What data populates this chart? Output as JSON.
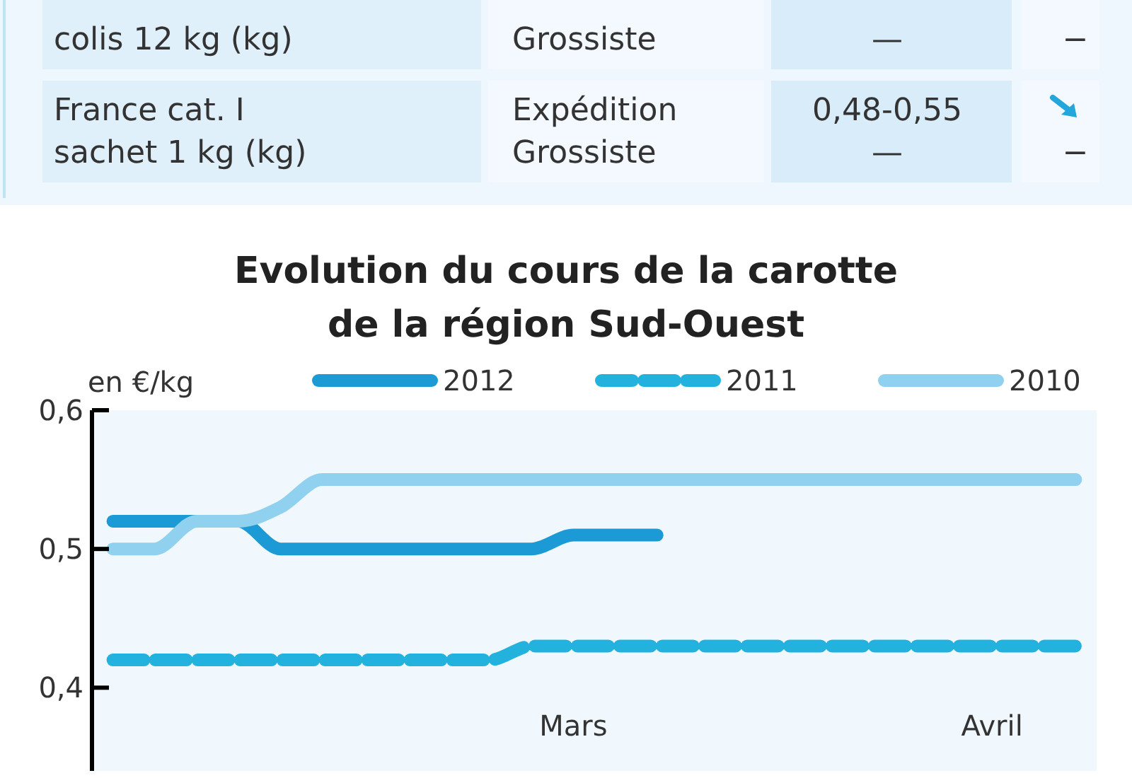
{
  "chart_data": [
    {
      "type": "other",
      "annotations": [
        "colis 12 kg (kg)",
        "Grossiste",
        "—",
        "−",
        "France cat. I\nsachet 1 kg (kg)",
        "Expédition\nGrossiste",
        "0,48-0,55\n—",
        "\n−"
      ]
    },
    {
      "type": "line",
      "title": "Evolution du cours de la carotte\nde la région Sud-Ouest",
      "ylabel": "en €/kg",
      "categories": [
        null,
        null,
        null,
        null,
        null,
        null,
        null,
        null,
        null,
        null,
        null,
        "Mars",
        null,
        null,
        null,
        null,
        null,
        null,
        null,
        null,
        null,
        "Avril",
        null,
        null
      ],
      "ylim": [
        0.34,
        0.6
      ],
      "yticks": [
        {
          "value": 0.4,
          "label": "0,4"
        },
        {
          "value": 0.5,
          "label": "0,5"
        },
        {
          "value": 0.6,
          "label": "0,6"
        }
      ],
      "legend": "top",
      "series": [
        {
          "name": "2012",
          "color": "#1b9ad6",
          "line_style": "solid",
          "values": [
            0.52,
            0.52,
            0.52,
            0.52,
            0.5,
            0.5,
            0.5,
            0.5,
            0.5,
            0.5,
            0.5,
            0.51,
            0.51,
            0.51,
            null,
            null,
            null,
            null,
            null,
            null,
            null,
            null,
            null,
            null
          ]
        },
        {
          "name": "2011",
          "color": "#22b2dd",
          "line_style": "dashed",
          "values": [
            0.42,
            0.42,
            0.42,
            0.42,
            0.42,
            0.42,
            0.42,
            0.42,
            0.42,
            0.42,
            0.43,
            0.43,
            0.43,
            0.43,
            0.43,
            0.43,
            0.43,
            0.43,
            0.43,
            0.43,
            0.43,
            0.43,
            0.43,
            0.43
          ]
        },
        {
          "name": "2010",
          "color": "#8fd1ef",
          "line_style": "solid",
          "values": [
            0.5,
            0.5,
            0.52,
            0.52,
            0.53,
            0.55,
            0.55,
            0.55,
            0.55,
            0.55,
            0.55,
            0.55,
            0.55,
            0.55,
            0.55,
            0.55,
            0.55,
            0.55,
            0.55,
            0.55,
            0.55,
            0.55,
            0.55,
            0.55
          ]
        }
      ]
    }
  ]
}
